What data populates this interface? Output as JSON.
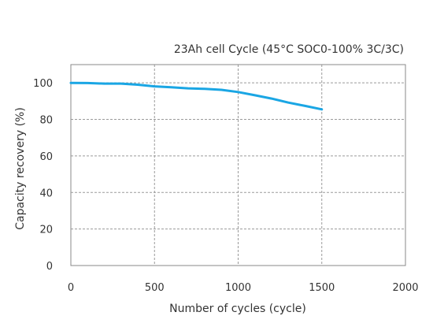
{
  "chart_data": {
    "type": "line",
    "title": "23Ah cell Cycle (45°C SOC0-100% 3C/3C)",
    "xlabel": "Number of cycles (cycle)",
    "ylabel": "Capacity recovery (%)",
    "xlim": [
      0,
      2000
    ],
    "ylim": [
      0,
      110
    ],
    "xticks": [
      0,
      500,
      1000,
      1500,
      2000
    ],
    "yticks": [
      0,
      20,
      40,
      60,
      80,
      100
    ],
    "grid": true,
    "series": [
      {
        "color": "#1aa6e4",
        "x": [
          0,
          100,
          200,
          300,
          400,
          500,
          600,
          700,
          800,
          900,
          1000,
          1100,
          1200,
          1300,
          1400,
          1500
        ],
        "y": [
          100,
          99.9,
          99.6,
          99.6,
          99.0,
          98.1,
          97.6,
          97.0,
          96.7,
          96.2,
          95.0,
          93.2,
          91.4,
          89.2,
          87.4,
          85.5
        ]
      }
    ]
  }
}
